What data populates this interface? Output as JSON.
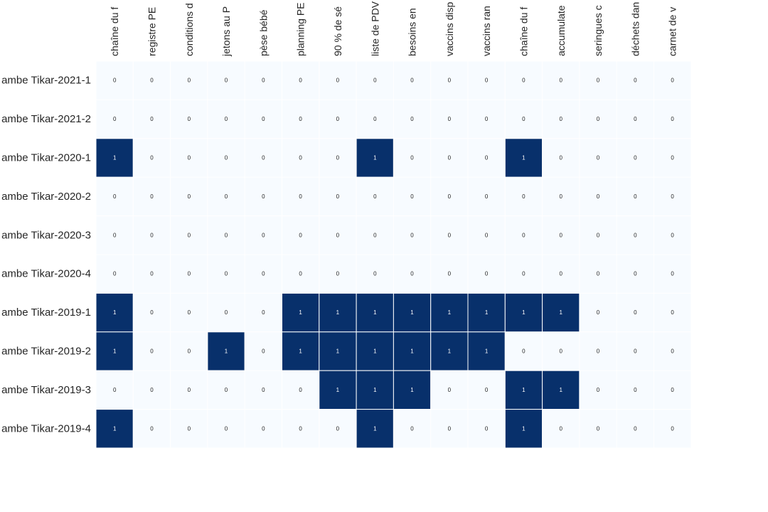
{
  "chart_data": {
    "type": "heatmap",
    "title": "",
    "xlabel": "",
    "ylabel": "",
    "x_labels": [
      "chaîne du f",
      "registre PE",
      "conditions d",
      "jetons au P",
      "pèse bébé",
      "planning PE",
      "90 % de sé",
      "liste de PDV",
      "besoins en",
      "vaccins disp",
      "vaccins ran",
      "chaîne du f",
      "accumulate",
      "seringues c",
      "déchets dan",
      "carnet de v"
    ],
    "y_labels": [
      "ambe Tikar-2021-1",
      "ambe Tikar-2021-2",
      "ambe Tikar-2020-1",
      "ambe Tikar-2020-2",
      "ambe Tikar-2020-3",
      "ambe Tikar-2020-4",
      "ambe Tikar-2019-1",
      "ambe Tikar-2019-2",
      "ambe Tikar-2019-3",
      "ambe Tikar-2019-4"
    ],
    "values": [
      [
        0,
        0,
        0,
        0,
        0,
        0,
        0,
        0,
        0,
        0,
        0,
        0,
        0,
        0,
        0,
        0
      ],
      [
        0,
        0,
        0,
        0,
        0,
        0,
        0,
        0,
        0,
        0,
        0,
        0,
        0,
        0,
        0,
        0
      ],
      [
        1,
        0,
        0,
        0,
        0,
        0,
        0,
        1,
        0,
        0,
        0,
        1,
        0,
        0,
        0,
        0
      ],
      [
        0,
        0,
        0,
        0,
        0,
        0,
        0,
        0,
        0,
        0,
        0,
        0,
        0,
        0,
        0,
        0
      ],
      [
        0,
        0,
        0,
        0,
        0,
        0,
        0,
        0,
        0,
        0,
        0,
        0,
        0,
        0,
        0,
        0
      ],
      [
        0,
        0,
        0,
        0,
        0,
        0,
        0,
        0,
        0,
        0,
        0,
        0,
        0,
        0,
        0,
        0
      ],
      [
        1,
        0,
        0,
        0,
        0,
        1,
        1,
        1,
        1,
        1,
        1,
        1,
        1,
        0,
        0,
        0
      ],
      [
        1,
        0,
        0,
        1,
        0,
        1,
        1,
        1,
        1,
        1,
        1,
        0,
        0,
        0,
        0,
        0
      ],
      [
        0,
        0,
        0,
        0,
        0,
        0,
        1,
        1,
        1,
        0,
        0,
        1,
        1,
        0,
        0,
        0
      ],
      [
        1,
        0,
        0,
        0,
        0,
        0,
        0,
        1,
        0,
        0,
        0,
        1,
        0,
        0,
        0,
        0
      ]
    ],
    "value_range": [
      0,
      1
    ],
    "colors": {
      "low": "#f7fbff",
      "high": "#08306b",
      "text_on_low": "#262626",
      "text_on_high": "#ffffff",
      "cell_border": "#ffffff"
    },
    "colorbar": false,
    "grid": false
  }
}
